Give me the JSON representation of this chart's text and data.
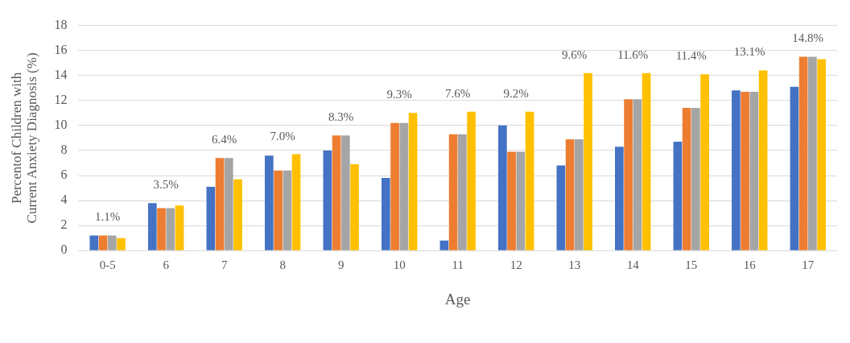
{
  "chart_data": {
    "type": "bar",
    "xlabel": "Age",
    "ylabel": "Percentof Children with Current Anxiety Diagnosis (%)",
    "categories": [
      "0-5",
      "6",
      "7",
      "8",
      "9",
      "10",
      "11",
      "12",
      "13",
      "14",
      "15",
      "16",
      "17"
    ],
    "series": [
      {
        "color": "#4472c4",
        "values": [
          1.2,
          3.8,
          5.1,
          7.6,
          8.0,
          5.8,
          0.8,
          10.0,
          6.8,
          8.3,
          8.7,
          12.8,
          13.1
        ]
      },
      {
        "color": "#ed7d31",
        "values": [
          1.2,
          3.4,
          7.4,
          6.4,
          9.2,
          10.2,
          9.3,
          7.9,
          8.9,
          12.1,
          11.4,
          12.7,
          15.5
        ]
      },
      {
        "color": "#a5a5a5",
        "values": [
          1.2,
          3.4,
          7.4,
          6.4,
          9.2,
          10.2,
          9.3,
          7.9,
          8.9,
          12.1,
          11.4,
          12.7,
          15.5
        ]
      },
      {
        "color": "#ffc000",
        "values": [
          1.0,
          3.6,
          5.7,
          7.7,
          6.9,
          11.0,
          11.1,
          11.1,
          14.2,
          14.2,
          14.1,
          14.4,
          15.3
        ]
      }
    ],
    "ylim": [
      0,
      18
    ],
    "yticks": [
      0,
      2,
      4,
      6,
      8,
      10,
      12,
      14,
      16,
      18
    ],
    "grid": "y",
    "legend": false,
    "annotations": [
      "1.1%",
      "3.5%",
      "6.4%",
      "7.0%",
      "8.3%",
      "9.3%",
      "7.6%",
      "9.2%",
      "9.6%",
      "11.6%",
      "11.4%",
      "13.1%",
      "14.8%"
    ]
  }
}
